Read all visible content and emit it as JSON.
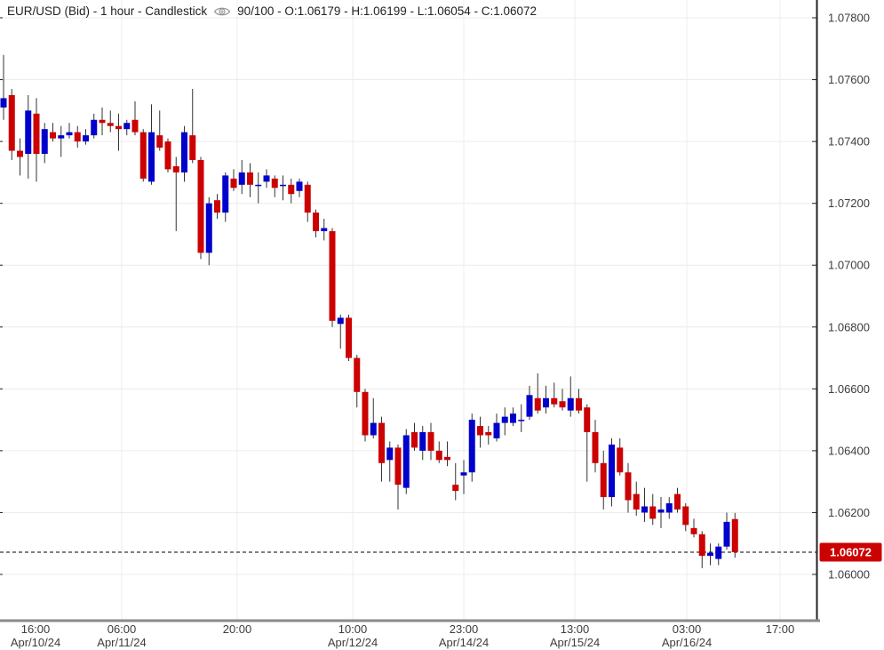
{
  "header": {
    "title_left": "EUR/USD (Bid) - 1 hour - Candlestick",
    "title_right": "90/100 - O:1.06179 - H:1.06199 - L:1.06054 - C:1.06072"
  },
  "colors": {
    "up": "#0101cc",
    "down": "#cc0101",
    "wick": "#333333",
    "grid": "#ececec",
    "y_axis_line": "#222222",
    "x_axis_line": "#8a8a8a",
    "label": "#3d3d3d",
    "badge_bg": "#cc0101",
    "badge_text": "#ffffff",
    "last_price_line": "#000000"
  },
  "last_price_badge": "1.06072",
  "y_axis": {
    "labels": [
      {
        "price": 1.078,
        "label": "1.07800"
      },
      {
        "price": 1.076,
        "label": "1.07600"
      },
      {
        "price": 1.074,
        "label": "1.07400"
      },
      {
        "price": 1.072,
        "label": "1.07200"
      },
      {
        "price": 1.07,
        "label": "1.07000"
      },
      {
        "price": 1.068,
        "label": "1.06800"
      },
      {
        "price": 1.066,
        "label": "1.06600"
      },
      {
        "price": 1.064,
        "label": "1.06400"
      },
      {
        "price": 1.062,
        "label": "1.06200"
      },
      {
        "price": 1.06,
        "label": "1.06000"
      }
    ]
  },
  "x_axis": {
    "ticks": [
      {
        "time": "16:00",
        "date": "Apr/10/24",
        "x": 40,
        "grid": false
      },
      {
        "time": "06:00",
        "date": "Apr/11/24",
        "x": 137,
        "grid": true
      },
      {
        "time": "20:00",
        "date": "",
        "x": 267,
        "grid": true
      },
      {
        "time": "10:00",
        "date": "Apr/12/24",
        "x": 397,
        "grid": true
      },
      {
        "time": "23:00",
        "date": "Apr/14/24",
        "x": 522,
        "grid": true
      },
      {
        "time": "13:00",
        "date": "Apr/15/24",
        "x": 647,
        "grid": true
      },
      {
        "time": "03:00",
        "date": "Apr/16/24",
        "x": 773,
        "grid": true
      },
      {
        "time": "17:00",
        "date": "",
        "x": 878,
        "grid": true
      }
    ]
  },
  "chart_data": {
    "type": "candlestick",
    "symbol": "EUR/USD (Bid)",
    "interval": "1 hour",
    "bars_shown": "90/100",
    "last_candle": {
      "open": 1.06179,
      "high": 1.06199,
      "low": 1.06054,
      "close": 1.06072
    },
    "last_price": 1.06072,
    "ylim": [
      1.06,
      1.078
    ],
    "y_tick_step": 0.002,
    "grid": true,
    "legend": "none",
    "candles": [
      [
        1.0751,
        1.0768,
        1.0747,
        1.0754
      ],
      [
        1.0755,
        1.0757,
        1.0734,
        1.0737
      ],
      [
        1.0737,
        1.0741,
        1.0729,
        1.0735
      ],
      [
        1.0736,
        1.0755,
        1.0728,
        1.075
      ],
      [
        1.0749,
        1.0754,
        1.0727,
        1.0736
      ],
      [
        1.0736,
        1.0746,
        1.0733,
        1.0744
      ],
      [
        1.0743,
        1.0746,
        1.074,
        1.0741
      ],
      [
        1.0741,
        1.0745,
        1.0735,
        1.0742
      ],
      [
        1.0742,
        1.0746,
        1.0741,
        1.0743
      ],
      [
        1.0743,
        1.0745,
        1.0738,
        1.074
      ],
      [
        1.074,
        1.0744,
        1.0739,
        1.0742
      ],
      [
        1.0742,
        1.0749,
        1.0741,
        1.0747
      ],
      [
        1.0747,
        1.0751,
        1.0742,
        1.0746
      ],
      [
        1.0746,
        1.075,
        1.0743,
        1.0745
      ],
      [
        1.0745,
        1.0749,
        1.0737,
        1.0744
      ],
      [
        1.0744,
        1.0747,
        1.0742,
        1.0746
      ],
      [
        1.0747,
        1.0753,
        1.0742,
        1.0743
      ],
      [
        1.0743,
        1.0744,
        1.0727,
        1.0728
      ],
      [
        1.0727,
        1.0752,
        1.0726,
        1.0743
      ],
      [
        1.0742,
        1.075,
        1.0737,
        1.0738
      ],
      [
        1.074,
        1.0741,
        1.073,
        1.0731
      ],
      [
        1.0732,
        1.0735,
        1.0711,
        1.073
      ],
      [
        1.073,
        1.0745,
        1.0727,
        1.0743
      ],
      [
        1.0742,
        1.0757,
        1.0733,
        1.0734
      ],
      [
        1.0734,
        1.0735,
        1.0702,
        1.0704
      ],
      [
        1.0704,
        1.0722,
        1.07,
        1.072
      ],
      [
        1.0721,
        1.0723,
        1.0715,
        1.0717
      ],
      [
        1.0717,
        1.073,
        1.0714,
        1.0729
      ],
      [
        1.0728,
        1.0731,
        1.0724,
        1.0725
      ],
      [
        1.0726,
        1.0734,
        1.0723,
        1.073
      ],
      [
        1.073,
        1.0733,
        1.0722,
        1.0726
      ],
      [
        1.0726,
        1.073,
        1.072,
        1.0726
      ],
      [
        1.0727,
        1.0731,
        1.0725,
        1.0729
      ],
      [
        1.0728,
        1.0729,
        1.0722,
        1.0725
      ],
      [
        1.0726,
        1.0729,
        1.0721,
        1.0726
      ],
      [
        1.0726,
        1.0728,
        1.072,
        1.0723
      ],
      [
        1.0724,
        1.0728,
        1.0722,
        1.0727
      ],
      [
        1.0726,
        1.0727,
        1.0714,
        1.0717
      ],
      [
        1.0717,
        1.0718,
        1.0709,
        1.0711
      ],
      [
        1.0711,
        1.0715,
        1.0708,
        1.0712
      ],
      [
        1.0711,
        1.0712,
        1.068,
        1.0682
      ],
      [
        1.0681,
        1.0684,
        1.0673,
        1.0683
      ],
      [
        1.0683,
        1.0684,
        1.0669,
        1.067
      ],
      [
        1.067,
        1.0671,
        1.0654,
        1.0659
      ],
      [
        1.0659,
        1.066,
        1.0643,
        1.0645
      ],
      [
        1.0645,
        1.0657,
        1.0644,
        1.0649
      ],
      [
        1.0649,
        1.0651,
        1.063,
        1.0636
      ],
      [
        1.0637,
        1.0643,
        1.063,
        1.0641
      ],
      [
        1.0641,
        1.0642,
        1.0621,
        1.0629
      ],
      [
        1.0628,
        1.0647,
        1.0626,
        1.0645
      ],
      [
        1.0646,
        1.0649,
        1.064,
        1.0641
      ],
      [
        1.064,
        1.0648,
        1.0637,
        1.0646
      ],
      [
        1.0646,
        1.0649,
        1.0637,
        1.064
      ],
      [
        1.064,
        1.0643,
        1.0636,
        1.0637
      ],
      [
        1.0638,
        1.0643,
        1.0635,
        1.0637
      ],
      [
        1.0629,
        1.0636,
        1.0624,
        1.0627
      ],
      [
        1.0632,
        1.0637,
        1.0626,
        1.0633
      ],
      [
        1.0633,
        1.0652,
        1.063,
        1.065
      ],
      [
        1.0648,
        1.0651,
        1.0641,
        1.0645
      ],
      [
        1.0646,
        1.0648,
        1.0642,
        1.0645
      ],
      [
        1.0644,
        1.0652,
        1.0643,
        1.0649
      ],
      [
        1.0649,
        1.0654,
        1.0645,
        1.0651
      ],
      [
        1.0649,
        1.0654,
        1.0648,
        1.0652
      ],
      [
        1.065,
        1.0655,
        1.0646,
        1.065
      ],
      [
        1.0651,
        1.0661,
        1.065,
        1.0658
      ],
      [
        1.0657,
        1.0665,
        1.0652,
        1.0653
      ],
      [
        1.0654,
        1.0661,
        1.0652,
        1.0657
      ],
      [
        1.0657,
        1.0662,
        1.0654,
        1.0655
      ],
      [
        1.0656,
        1.066,
        1.0653,
        1.0654
      ],
      [
        1.0653,
        1.0664,
        1.0651,
        1.0657
      ],
      [
        1.0657,
        1.066,
        1.0652,
        1.0653
      ],
      [
        1.0654,
        1.0655,
        1.063,
        1.0646
      ],
      [
        1.0646,
        1.065,
        1.0633,
        1.0636
      ],
      [
        1.0636,
        1.064,
        1.0621,
        1.0625
      ],
      [
        1.0625,
        1.0644,
        1.0622,
        1.0642
      ],
      [
        1.0641,
        1.0644,
        1.0632,
        1.0633
      ],
      [
        1.0633,
        1.0636,
        1.062,
        1.0624
      ],
      [
        1.0626,
        1.063,
        1.0619,
        1.0621
      ],
      [
        1.062,
        1.0628,
        1.0617,
        1.0622
      ],
      [
        1.0622,
        1.0626,
        1.0616,
        1.0618
      ],
      [
        1.062,
        1.0625,
        1.0615,
        1.0621
      ],
      [
        1.062,
        1.0625,
        1.0618,
        1.0623
      ],
      [
        1.0626,
        1.0628,
        1.062,
        1.0621
      ],
      [
        1.0622,
        1.0623,
        1.0614,
        1.0616
      ],
      [
        1.0615,
        1.0618,
        1.0612,
        1.0613
      ],
      [
        1.0613,
        1.0614,
        1.0602,
        1.0606
      ],
      [
        1.0606,
        1.061,
        1.0603,
        1.0607
      ],
      [
        1.0605,
        1.061,
        1.0603,
        1.0609
      ],
      [
        1.0609,
        1.062,
        1.0608,
        1.0617
      ],
      [
        1.06179,
        1.06199,
        1.06054,
        1.06072
      ]
    ]
  }
}
